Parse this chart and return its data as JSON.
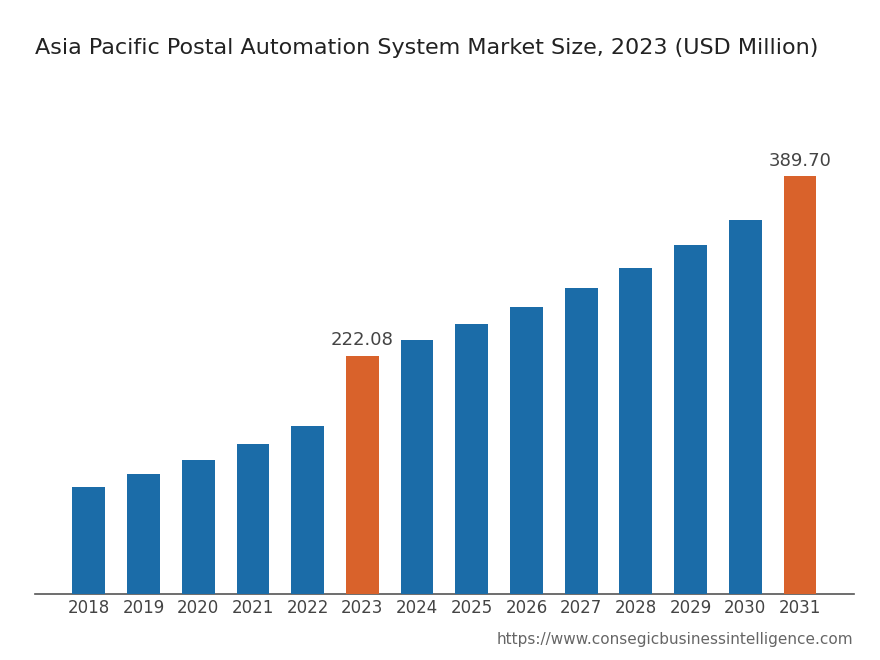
{
  "title": "Asia Pacific Postal Automation System Market Size, 2023 (USD Million)",
  "years": [
    2018,
    2019,
    2020,
    2021,
    2022,
    2023,
    2024,
    2025,
    2026,
    2027,
    2028,
    2029,
    2030,
    2031
  ],
  "values": [
    100.0,
    112.0,
    125.0,
    140.0,
    157.0,
    222.08,
    237.0,
    252.0,
    268.0,
    285.0,
    304.0,
    325.0,
    349.0,
    389.7
  ],
  "bar_colors": [
    "#1b6ca8",
    "#1b6ca8",
    "#1b6ca8",
    "#1b6ca8",
    "#1b6ca8",
    "#d9622b",
    "#1b6ca8",
    "#1b6ca8",
    "#1b6ca8",
    "#1b6ca8",
    "#1b6ca8",
    "#1b6ca8",
    "#1b6ca8",
    "#d9622b"
  ],
  "labeled_bars": [
    5,
    13
  ],
  "labels": [
    "222.08",
    "389.70"
  ],
  "background_color": "#ffffff",
  "title_fontsize": 16,
  "tick_fontsize": 12,
  "label_fontsize": 13,
  "url_text": "https://www.consegicbusinessintelligence.com",
  "url_fontsize": 11,
  "ylim": [
    0,
    480
  ],
  "bar_width": 0.6
}
